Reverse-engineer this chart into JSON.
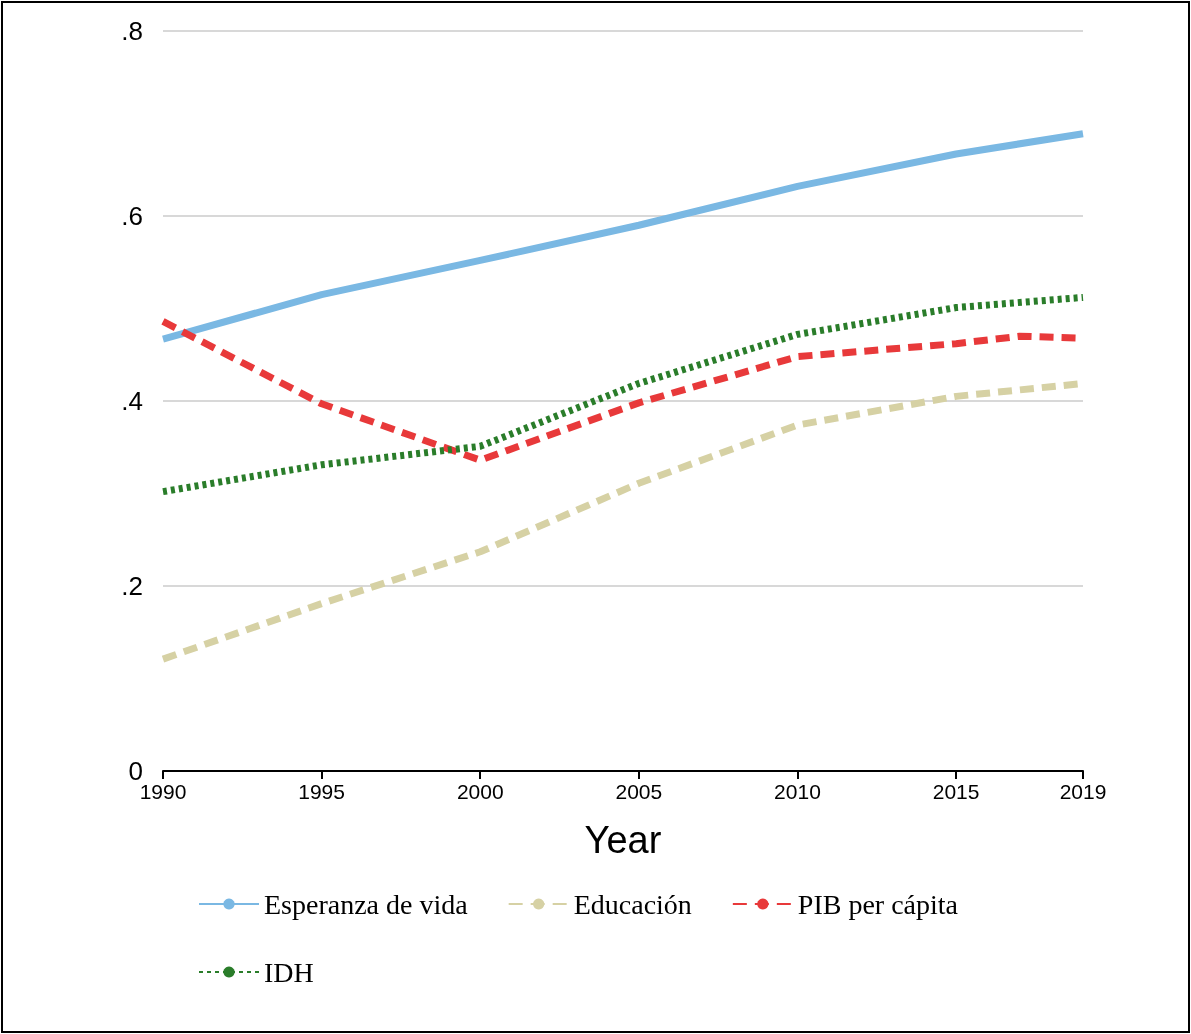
{
  "chart_data": {
    "type": "line",
    "xlabel": "Year",
    "x": [
      1990,
      1995,
      2000,
      2005,
      2010,
      2015,
      2019
    ],
    "series": [
      {
        "name": "Esperanza de vida",
        "color": "#7ab8e3",
        "line_style": "solid",
        "values": [
          0.467,
          0.515,
          0.552,
          0.59,
          0.632,
          0.667,
          0.689
        ]
      },
      {
        "name": "Educación",
        "color": "#d6d1a4",
        "line_style": "dashed",
        "values": [
          0.121,
          0.181,
          0.237,
          0.311,
          0.374,
          0.405,
          0.419
        ]
      },
      {
        "name": "PIB per cápita",
        "color": "#e8393a",
        "line_style": "dashed",
        "x": [
          1990,
          1995,
          2000,
          2005,
          2010,
          2015,
          2017,
          2019
        ],
        "values": [
          0.486,
          0.397,
          0.336,
          0.398,
          0.448,
          0.462,
          0.47,
          0.468
        ]
      },
      {
        "name": "IDH",
        "color": "#2a7d2a",
        "line_style": "dotted",
        "values": [
          0.302,
          0.331,
          0.351,
          0.419,
          0.472,
          0.501,
          0.512
        ]
      }
    ],
    "xlim": [
      1990,
      2019
    ],
    "xticks": [
      1990,
      1995,
      2000,
      2005,
      2010,
      2015,
      2019
    ],
    "ylim": [
      0,
      0.8
    ],
    "yticks": [
      {
        "value": 0,
        "label": "0"
      },
      {
        "value": 0.2,
        "label": ".2"
      },
      {
        "value": 0.4,
        "label": ".4"
      },
      {
        "value": 0.6,
        "label": ".6"
      },
      {
        "value": 0.8,
        "label": ".8"
      }
    ],
    "grid": "y",
    "legend": "bottom",
    "marker": "none"
  }
}
